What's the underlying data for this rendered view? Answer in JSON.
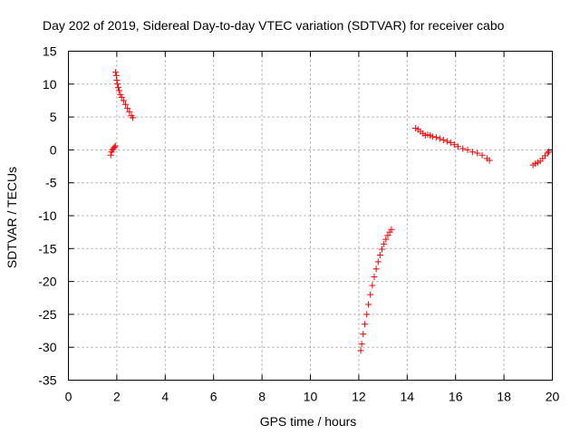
{
  "chart_data": {
    "type": "scatter",
    "title": "Day 202 of 2019, Sidereal Day-to-day VTEC variation (SDTVAR) for receiver cabo",
    "xlabel": "GPS time / hours",
    "ylabel": "SDTVAR / TECUs",
    "xlim": [
      0,
      20
    ],
    "ylim": [
      -35,
      15
    ],
    "xticks": [
      0,
      2,
      4,
      6,
      8,
      10,
      12,
      14,
      16,
      18,
      20
    ],
    "yticks": [
      -35,
      -30,
      -25,
      -20,
      -15,
      -10,
      -5,
      0,
      5,
      10,
      15
    ],
    "grid": true,
    "marker": "+",
    "color": "#ff0000",
    "series": [
      {
        "segments": [
          [
            [
              1.75,
              -0.8
            ],
            [
              1.78,
              -0.3
            ],
            [
              1.82,
              0.0
            ],
            [
              1.86,
              0.2
            ],
            [
              1.9,
              0.4
            ],
            [
              1.94,
              0.6
            ]
          ],
          [
            [
              1.95,
              11.8
            ],
            [
              1.98,
              11.3
            ],
            [
              2.0,
              10.6
            ],
            [
              2.03,
              10.0
            ],
            [
              2.06,
              9.5
            ],
            [
              2.1,
              9.0
            ],
            [
              2.15,
              8.4
            ],
            [
              2.2,
              8.0
            ],
            [
              2.28,
              7.5
            ],
            [
              2.36,
              6.9
            ],
            [
              2.44,
              6.3
            ],
            [
              2.52,
              5.8
            ],
            [
              2.6,
              5.2
            ],
            [
              2.66,
              4.9
            ]
          ],
          [
            [
              12.08,
              -30.5
            ],
            [
              12.12,
              -29.5
            ],
            [
              12.18,
              -28.0
            ],
            [
              12.25,
              -26.5
            ],
            [
              12.33,
              -25.0
            ],
            [
              12.4,
              -23.5
            ],
            [
              12.48,
              -22.0
            ],
            [
              12.56,
              -20.6
            ],
            [
              12.64,
              -19.3
            ],
            [
              12.72,
              -18.1
            ],
            [
              12.8,
              -17.0
            ],
            [
              12.88,
              -16.0
            ],
            [
              12.96,
              -15.1
            ],
            [
              13.04,
              -14.3
            ],
            [
              13.12,
              -13.6
            ],
            [
              13.2,
              -13.0
            ],
            [
              13.28,
              -12.5
            ],
            [
              13.35,
              -12.1
            ]
          ],
          [
            [
              14.35,
              3.3
            ],
            [
              14.45,
              3.1
            ],
            [
              14.55,
              2.8
            ],
            [
              14.65,
              2.5
            ],
            [
              14.75,
              2.2
            ],
            [
              14.85,
              2.3
            ],
            [
              14.95,
              2.2
            ],
            [
              15.05,
              2.0
            ],
            [
              15.2,
              1.9
            ],
            [
              15.35,
              1.7
            ],
            [
              15.5,
              1.5
            ],
            [
              15.65,
              1.3
            ],
            [
              15.8,
              1.1
            ],
            [
              15.95,
              0.8
            ],
            [
              16.1,
              0.5
            ],
            [
              16.3,
              0.2
            ],
            [
              16.5,
              0.0
            ],
            [
              16.7,
              -0.3
            ],
            [
              16.9,
              -0.5
            ],
            [
              17.1,
              -0.8
            ],
            [
              17.3,
              -1.3
            ],
            [
              17.4,
              -1.6
            ]
          ],
          [
            [
              19.2,
              -2.3
            ],
            [
              19.3,
              -2.1
            ],
            [
              19.4,
              -1.9
            ],
            [
              19.5,
              -1.7
            ],
            [
              19.6,
              -1.3
            ],
            [
              19.7,
              -0.9
            ],
            [
              19.8,
              -0.5
            ],
            [
              19.85,
              -0.3
            ]
          ]
        ]
      }
    ]
  }
}
